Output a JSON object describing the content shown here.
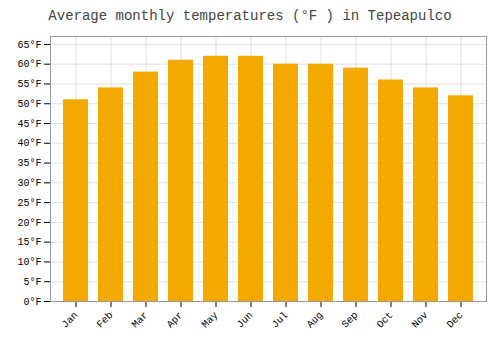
{
  "chart_data": {
    "type": "bar",
    "title": "Average monthly temperatures (°F ) in Tepeapulco",
    "categories": [
      "Jan",
      "Feb",
      "Mar",
      "Apr",
      "May",
      "Jun",
      "Jul",
      "Aug",
      "Sep",
      "Oct",
      "Nov",
      "Dec"
    ],
    "values": [
      51,
      54,
      58,
      61,
      62,
      62,
      60,
      60,
      59,
      56,
      54,
      52
    ],
    "color": "#F5A800",
    "ylim": [
      0,
      67
    ],
    "yticks": [
      {
        "value": 0,
        "label": "0°F"
      },
      {
        "value": 5,
        "label": "5°F"
      },
      {
        "value": 10,
        "label": "10°F"
      },
      {
        "value": 15,
        "label": "15°F"
      },
      {
        "value": 20,
        "label": "20°F"
      },
      {
        "value": 25,
        "label": "25°F"
      },
      {
        "value": 30,
        "label": "30°F"
      },
      {
        "value": 35,
        "label": "35°F"
      },
      {
        "value": 40,
        "label": "40°F"
      },
      {
        "value": 45,
        "label": "45°F"
      },
      {
        "value": 50,
        "label": "50°F"
      },
      {
        "value": 55,
        "label": "55°F"
      },
      {
        "value": 60,
        "label": "60°F"
      },
      {
        "value": 65,
        "label": "65°F"
      }
    ],
    "grid": true
  }
}
